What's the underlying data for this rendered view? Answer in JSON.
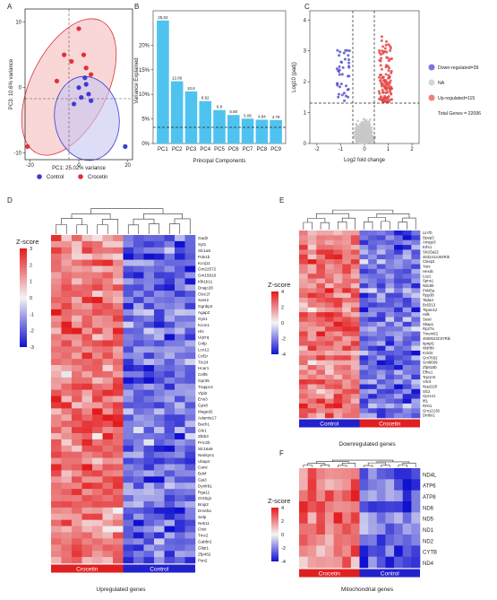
{
  "panels": {
    "A": "A",
    "B": "B",
    "C": "C",
    "D": "D",
    "E": "E",
    "F": "F"
  },
  "chart_data": [
    {
      "id": "A",
      "type": "scatter",
      "xlabel": "PC1: 25.02% variance",
      "ylabel": "PC3: 10.6% variance",
      "xlim": [
        -22,
        22
      ],
      "ylim": [
        -11,
        12
      ],
      "xticks": [
        -20,
        0,
        20
      ],
      "yticks": [
        -10,
        0,
        10
      ],
      "series": [
        {
          "name": "Control",
          "color": "#3b3bd6",
          "points": [
            [
              -2,
              -2.5
            ],
            [
              0,
              0
            ],
            [
              1,
              -1.5
            ],
            [
              2.5,
              1.5
            ],
            [
              4,
              -1
            ],
            [
              5,
              -2
            ],
            [
              3,
              0.5
            ],
            [
              19,
              -9
            ]
          ]
        },
        {
          "name": "Crocetin",
          "color": "#e0303c",
          "points": [
            [
              -21,
              -9
            ],
            [
              -9,
              1
            ],
            [
              -6,
              5
            ],
            [
              -3,
              4
            ],
            [
              0,
              9
            ],
            [
              2,
              5
            ],
            [
              3,
              3
            ],
            [
              5,
              2
            ]
          ]
        }
      ]
    },
    {
      "id": "B",
      "type": "bar",
      "xlabel": "Principal Components",
      "ylabel": "Variance Explained",
      "ylim": [
        0,
        27
      ],
      "yticks": [
        0,
        5,
        10,
        15,
        20
      ],
      "ytick_labels": [
        "0%",
        "5%",
        "10%",
        "15%",
        "20%"
      ],
      "categories": [
        "PC1",
        "PC2",
        "PC3",
        "PC4",
        "PC5",
        "PC6",
        "PC7",
        "PC8",
        "PC9"
      ],
      "values": [
        25.02,
        12.66,
        10.6,
        8.62,
        6.8,
        5.8,
        5.06,
        4.84,
        4.78
      ],
      "value_labels": [
        "25.02",
        "12.66",
        "10.6",
        "8.62",
        "6.8",
        "5.80",
        "5.06",
        "4.84",
        "4.78"
      ],
      "color": "#4fc3f0"
    },
    {
      "id": "C",
      "type": "scatter",
      "xlabel": "Log2 fold change",
      "ylabel": "Log10 (padj)",
      "xlim": [
        -2.3,
        2.3
      ],
      "ylim": [
        0,
        4.3
      ],
      "xticks": [
        -2,
        -1,
        0,
        1,
        2
      ],
      "yticks": [
        0,
        1,
        2,
        3,
        4
      ],
      "thresholds": {
        "x": [
          -0.58,
          0.58
        ],
        "y": 1.3
      },
      "legend": [
        {
          "label": "Down-regulated=39",
          "color": "#7777dd"
        },
        {
          "label": "NA",
          "color": "#d5d5d5"
        },
        {
          "label": "Up-regulated=115",
          "color": "#ee8080"
        },
        {
          "label": "Total Genes = 22096",
          "color": ""
        }
      ],
      "counts": {
        "down": 39,
        "up": 115,
        "total": 22096
      }
    },
    {
      "id": "D",
      "type": "heatmap",
      "title": "Upregulated genes",
      "legend_title": "Z-score",
      "scale_ticks": [
        "3",
        "2",
        "1",
        "0",
        "-1",
        "-2",
        "-3"
      ],
      "groups": [
        {
          "label": "Crocetin",
          "color": "#e02020"
        },
        {
          "label": "Control",
          "color": "#2222cc"
        }
      ],
      "columns": 14,
      "rows": [
        "Gad2",
        "Syt1",
        "Slc1a5",
        "Pde1b",
        "Kcnj11",
        "Gm22572",
        "Gm15816",
        "Klk1b11",
        "Dnajc28",
        "Clec2l",
        "Sars2",
        "Ggnbp2",
        "Agap2",
        "Gys1",
        "Kcnn1",
        "Hlx",
        "Uqcrq",
        "Crtlp",
        "Lcn12",
        "Csf1r",
        "Ttc24",
        "Hcar1",
        "Celf6",
        "Gpr35",
        "Trappc3",
        "Ylpl2",
        "Eno3",
        "Gpx8",
        "Maged2",
        "Adamts17",
        "Bach1",
        "Gle1",
        "Zbtb3",
        "Prrc2b",
        "Slc16a9",
        "Nedsyn1",
        "Ubap2",
        "Canx",
        "Bdnf",
        "Gja3",
        "Dynlrb1",
        "Rga11",
        "Or10g1",
        "Bnip2",
        "Drosha",
        "Selp",
        "Nek11",
        "Ctso",
        "Tmc2",
        "Gabbr2",
        "Glipt1",
        "Zfp462",
        "Psn2"
      ]
    },
    {
      "id": "E",
      "type": "heatmap",
      "title": "Downregulated genes",
      "legend_title": "Z-score",
      "scale_ticks": [
        "4",
        "2",
        "0",
        "-2",
        "-4"
      ],
      "groups": [
        {
          "label": "Control",
          "color": "#2222cc"
        },
        {
          "label": "Crocetin",
          "color": "#e02020"
        }
      ],
      "columns": 14,
      "rows": [
        "Lin7b",
        "Dpep3",
        "Amigo3",
        "Erfe1",
        "Slc25a22",
        "4632414J04Rik",
        "Clasp2",
        "Yars",
        "Hexdc",
        "Lcp1",
        "Spns1",
        "Ndc80",
        "Pnkl5a",
        "Rpp38",
        "Tada3",
        "Bcl2l13",
        "Tspan12",
        "Hdk",
        "Sesti",
        "Skap1",
        "Rp27a",
        "Tmem62",
        "4930523C07Rik",
        "Itpripl1",
        "Wdr89",
        "Kctd4",
        "Gm7662",
        "Gm8609",
        "Zfp518b",
        "Efhe1",
        "Top1mt",
        "Vilc3",
        "Nup210l",
        "Slc2",
        "Gpr141",
        "Ift1",
        "Rnh1",
        "Gm12136",
        "Dmbx1"
      ]
    },
    {
      "id": "F",
      "type": "heatmap",
      "title": "Mitochondrial genes",
      "legend_title": "Z-score",
      "scale_ticks": [
        "4",
        "2",
        "0",
        "-2",
        "-4"
      ],
      "groups": [
        {
          "label": "Crocetin",
          "color": "#e02020"
        },
        {
          "label": "Control",
          "color": "#2222cc"
        }
      ],
      "columns": 14,
      "rows": [
        "ND4L",
        "ATP6",
        "ATP8",
        "ND6",
        "ND5",
        "ND1",
        "ND2",
        "CYTB",
        "ND4"
      ]
    }
  ]
}
